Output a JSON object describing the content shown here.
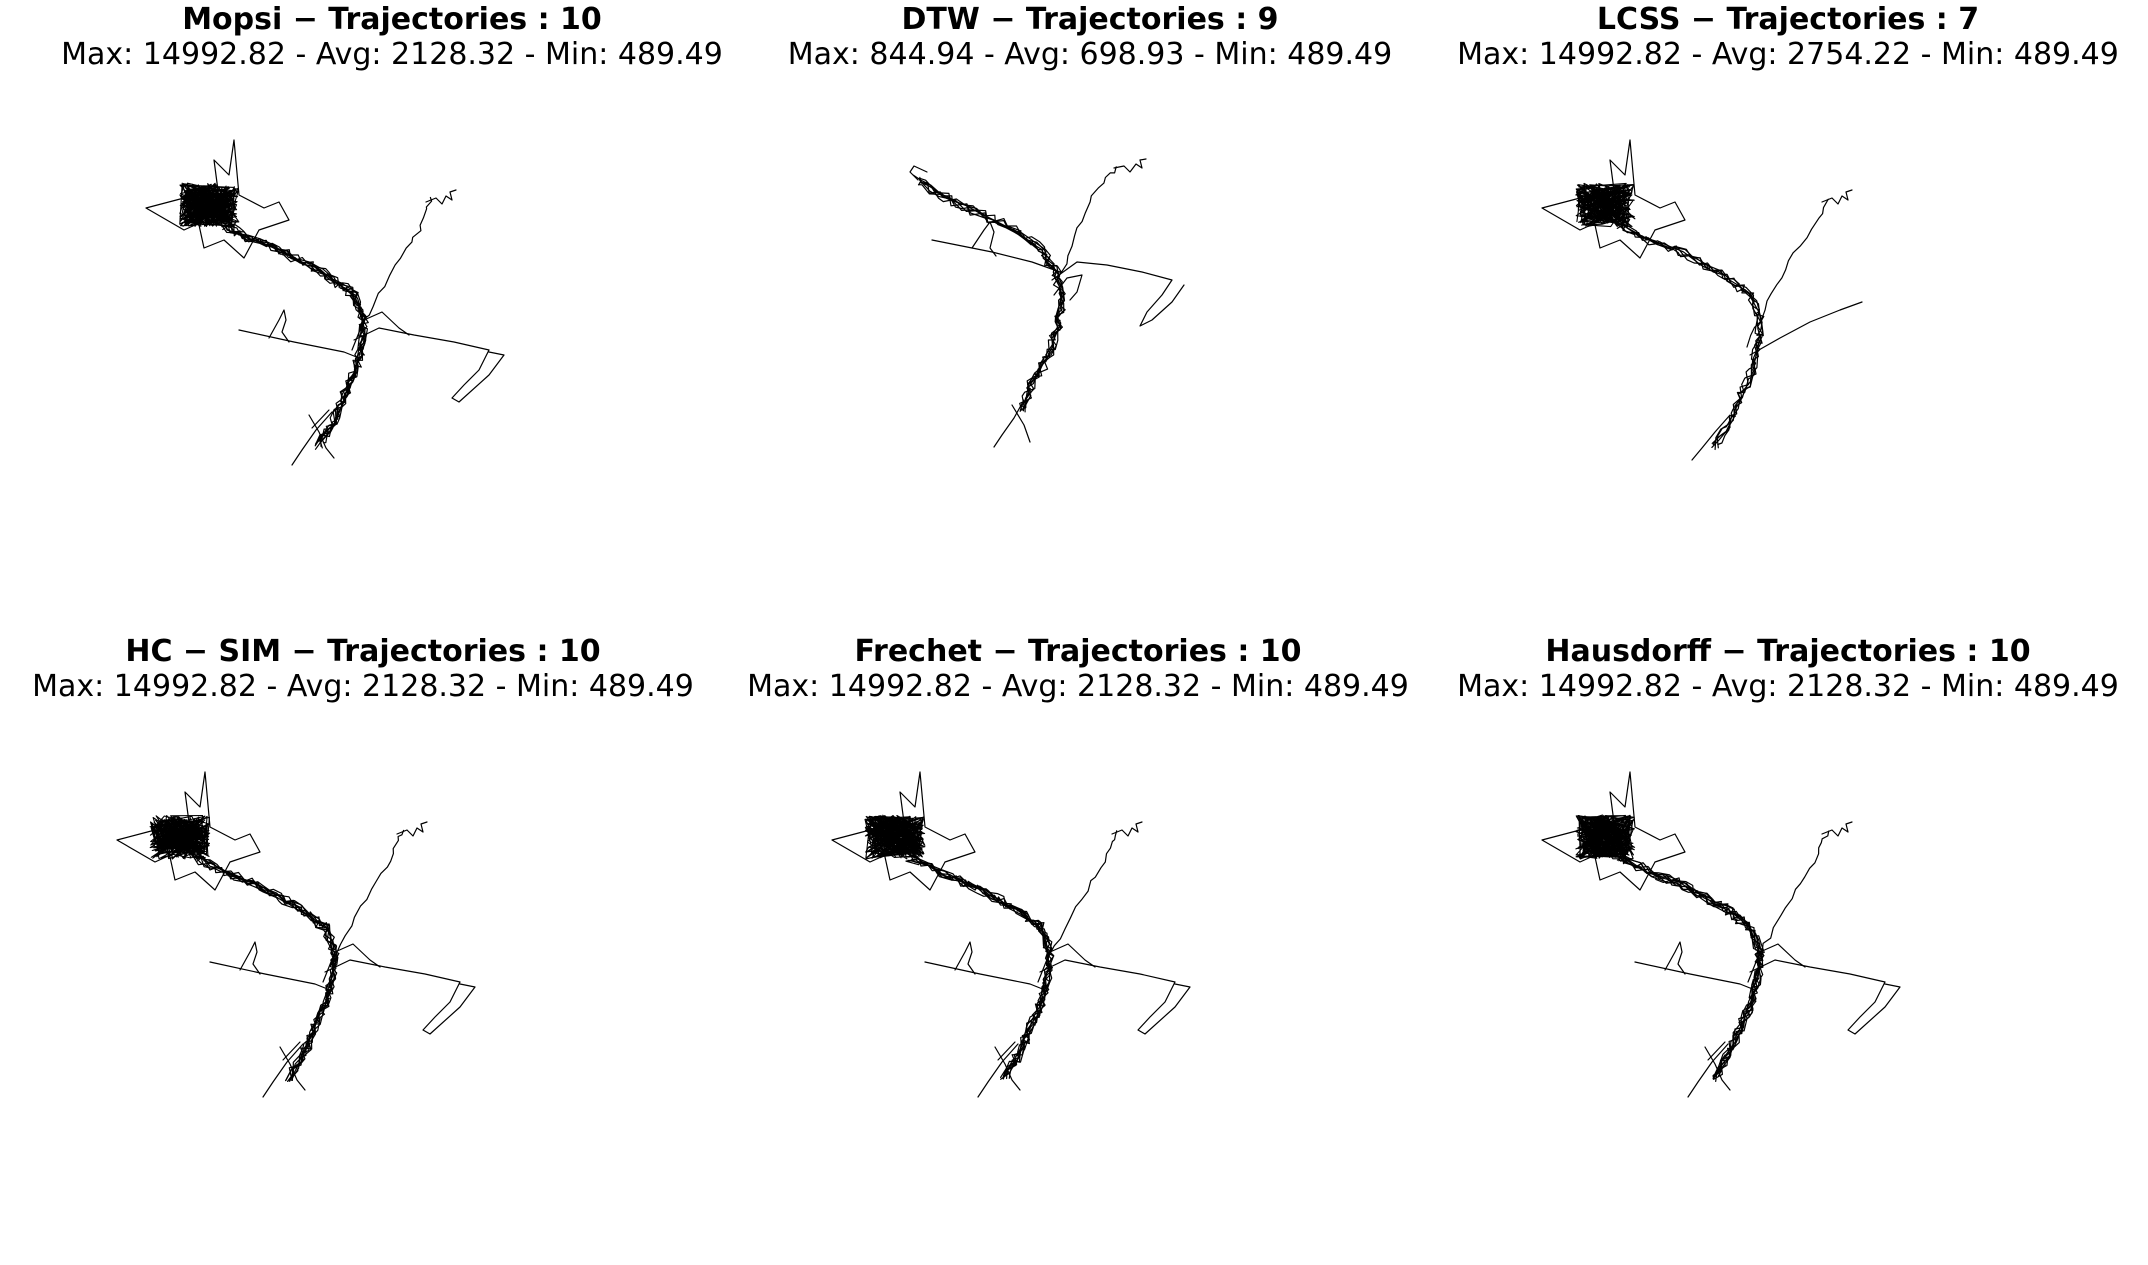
{
  "figure": {
    "panels": [
      {
        "name": "mopsi",
        "title": "Mopsi − Trajectories : 10",
        "stats": "Max: 14992.82 - Avg: 2128.32 - Min: 489.49",
        "variant": "full"
      },
      {
        "name": "dtw",
        "title": "DTW − Trajectories : 9",
        "stats": "Max: 844.94 - Avg: 698.93 - Min: 489.49",
        "variant": "dtw"
      },
      {
        "name": "lcss",
        "title": "LCSS − Trajectories : 7",
        "stats": "Max: 14992.82 - Avg: 2754.22 - Min: 489.49",
        "variant": "lcss"
      },
      {
        "name": "hc-sim",
        "title": "HC − SIM − Trajectories : 10",
        "stats": "Max: 14992.82 - Avg: 2128.32 - Min: 489.49",
        "variant": "full"
      },
      {
        "name": "frechet",
        "title": "Frechet − Trajectories : 10",
        "stats": "Max: 14992.82 - Avg: 2128.32 - Min: 489.49",
        "variant": "full"
      },
      {
        "name": "hausdorff",
        "title": "Hausdorff − Trajectories : 10",
        "stats": "Max: 14992.82 - Avg: 2128.32 - Min: 489.49",
        "variant": "full"
      }
    ],
    "colors": {
      "line": "#000000",
      "background": "#ffffff"
    }
  }
}
